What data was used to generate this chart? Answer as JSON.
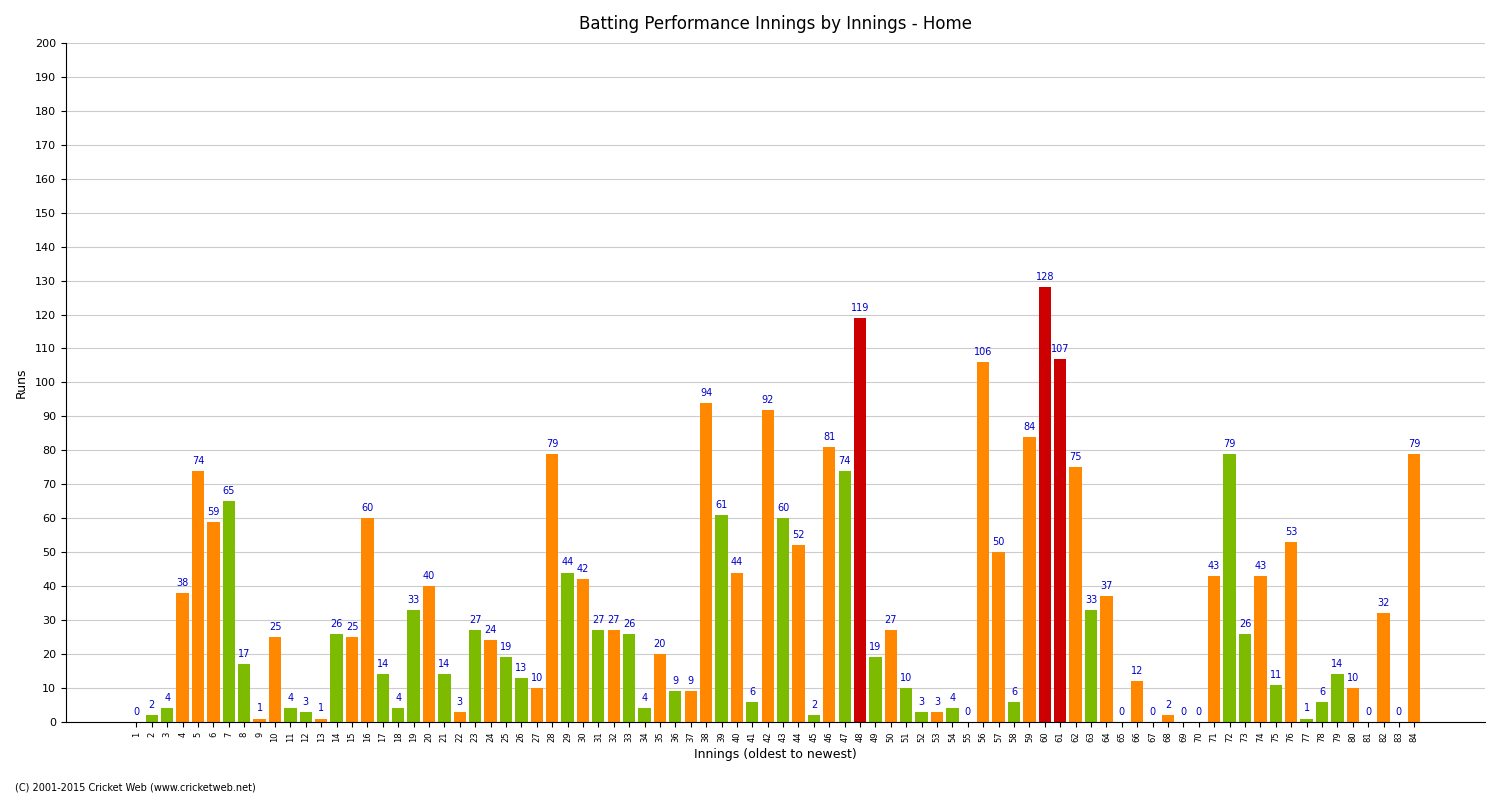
{
  "title": "Batting Performance Innings by Innings - Home",
  "xlabel": "Innings (oldest to newest)",
  "ylabel": "Runs",
  "ylim": [
    0,
    200
  ],
  "yticks": [
    0,
    10,
    20,
    30,
    40,
    50,
    60,
    70,
    80,
    90,
    100,
    110,
    120,
    130,
    140,
    150,
    160,
    170,
    180,
    190,
    200
  ],
  "background_color": "#ffffff",
  "grid_color": "#cccccc",
  "innings": [
    1,
    2,
    3,
    4,
    5,
    6,
    7,
    8,
    9,
    10,
    11,
    12,
    13,
    14,
    15,
    16,
    17,
    18,
    19,
    20,
    21,
    22,
    23,
    24,
    25,
    26,
    27,
    28,
    29,
    30,
    31,
    32,
    33,
    34,
    35,
    36,
    37,
    38,
    39,
    40,
    41,
    42,
    43,
    44,
    45,
    46,
    47,
    48,
    49,
    50,
    51,
    52,
    53,
    54,
    55,
    56,
    57,
    58,
    59,
    60,
    61,
    62,
    63,
    64,
    65,
    66,
    67,
    68,
    69,
    70,
    71,
    72,
    73,
    74,
    75,
    76,
    77,
    78,
    79,
    80,
    81,
    82,
    83,
    84
  ],
  "scores": [
    0,
    2,
    4,
    38,
    74,
    59,
    65,
    17,
    1,
    25,
    4,
    3,
    1,
    26,
    25,
    60,
    14,
    4,
    33,
    40,
    14,
    3,
    27,
    24,
    19,
    13,
    10,
    79,
    44,
    42,
    27,
    27,
    26,
    4,
    20,
    9,
    9,
    94,
    61,
    44,
    6,
    92,
    60,
    52,
    2,
    81,
    74,
    119,
    19,
    27,
    10,
    3,
    3,
    4,
    0,
    106,
    50,
    6,
    84,
    128,
    107,
    75,
    33,
    37,
    0,
    12,
    0,
    2,
    0,
    0,
    43,
    79,
    26,
    43,
    11,
    53,
    1,
    6,
    14,
    10,
    0,
    32,
    0,
    79
  ],
  "colors": [
    "#ff8800",
    "#7cbb00",
    "#7cbb00",
    "#ff8800",
    "#ff8800",
    "#ff8800",
    "#7cbb00",
    "#7cbb00",
    "#ff8800",
    "#ff8800",
    "#7cbb00",
    "#7cbb00",
    "#ff8800",
    "#7cbb00",
    "#ff8800",
    "#ff8800",
    "#7cbb00",
    "#7cbb00",
    "#7cbb00",
    "#ff8800",
    "#7cbb00",
    "#ff8800",
    "#7cbb00",
    "#ff8800",
    "#7cbb00",
    "#7cbb00",
    "#ff8800",
    "#ff8800",
    "#7cbb00",
    "#ff8800",
    "#7cbb00",
    "#ff8800",
    "#7cbb00",
    "#7cbb00",
    "#ff8800",
    "#7cbb00",
    "#ff8800",
    "#ff8800",
    "#7cbb00",
    "#ff8800",
    "#7cbb00",
    "#ff8800",
    "#7cbb00",
    "#ff8800",
    "#7cbb00",
    "#ff8800",
    "#7cbb00",
    "#cc0000",
    "#7cbb00",
    "#ff8800",
    "#7cbb00",
    "#7cbb00",
    "#ff8800",
    "#7cbb00",
    "#ff8800",
    "#ff8800",
    "#ff8800",
    "#7cbb00",
    "#ff8800",
    "#cc0000",
    "#cc0000",
    "#ff8800",
    "#7cbb00",
    "#ff8800",
    "#7cbb00",
    "#ff8800",
    "#7cbb00",
    "#ff8800",
    "#7cbb00",
    "#ff8800",
    "#ff8800",
    "#7cbb00",
    "#7cbb00",
    "#ff8800",
    "#7cbb00",
    "#ff8800",
    "#7cbb00",
    "#7cbb00",
    "#7cbb00",
    "#ff8800",
    "#7cbb00",
    "#ff8800",
    "#7cbb00",
    "#ff8800"
  ],
  "value_color": "#0000cc",
  "value_fontsize": 7,
  "label_fontsize": 9,
  "title_fontsize": 12,
  "footer": "(C) 2001-2015 Cricket Web (www.cricketweb.net)"
}
